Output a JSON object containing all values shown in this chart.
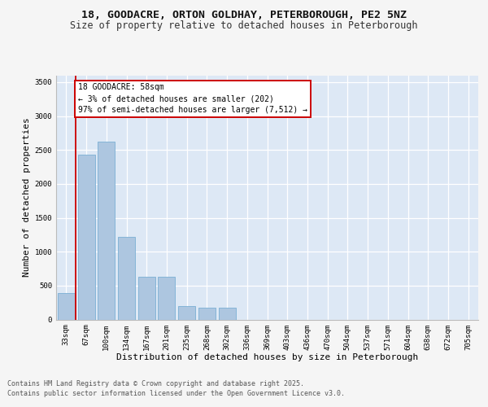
{
  "title_line1": "18, GOODACRE, ORTON GOLDHAY, PETERBOROUGH, PE2 5NZ",
  "title_line2": "Size of property relative to detached houses in Peterborough",
  "xlabel": "Distribution of detached houses by size in Peterborough",
  "ylabel": "Number of detached properties",
  "categories": [
    "33sqm",
    "67sqm",
    "100sqm",
    "134sqm",
    "167sqm",
    "201sqm",
    "235sqm",
    "268sqm",
    "302sqm",
    "336sqm",
    "369sqm",
    "403sqm",
    "436sqm",
    "470sqm",
    "504sqm",
    "537sqm",
    "571sqm",
    "604sqm",
    "638sqm",
    "672sqm",
    "705sqm"
  ],
  "values": [
    390,
    2430,
    2620,
    1220,
    630,
    630,
    200,
    175,
    175,
    0,
    0,
    0,
    0,
    0,
    0,
    0,
    0,
    0,
    0,
    0,
    0
  ],
  "bar_color": "#adc6e0",
  "bar_edge_color": "#7aafd4",
  "bg_color": "#dde8f5",
  "grid_color": "#ffffff",
  "vline_x": 0.48,
  "vline_color": "#cc0000",
  "annotation_text": "18 GOODACRE: 58sqm\n← 3% of detached houses are smaller (202)\n97% of semi-detached houses are larger (7,512) →",
  "annotation_box_edgecolor": "#cc0000",
  "ylim": [
    0,
    3600
  ],
  "yticks": [
    0,
    500,
    1000,
    1500,
    2000,
    2500,
    3000,
    3500
  ],
  "fig_bg_color": "#f5f5f5",
  "title_fontsize": 9.5,
  "subtitle_fontsize": 8.5,
  "axis_label_fontsize": 8,
  "tick_fontsize": 6.5,
  "annot_fontsize": 7,
  "footer_fontsize": 6,
  "footer_line1": "Contains HM Land Registry data © Crown copyright and database right 2025.",
  "footer_line2": "Contains public sector information licensed under the Open Government Licence v3.0."
}
